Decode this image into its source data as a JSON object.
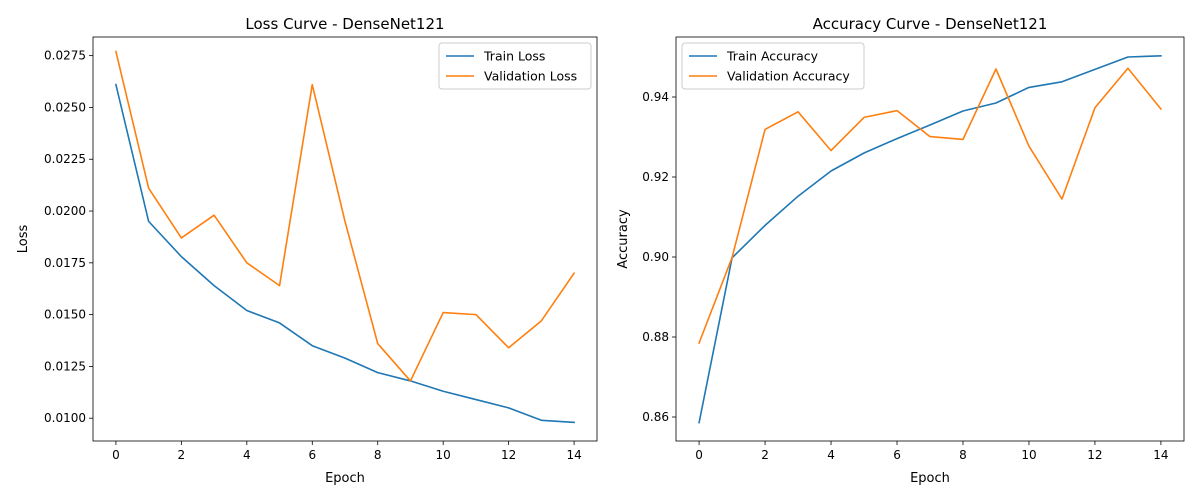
{
  "chart_data": [
    {
      "type": "line",
      "title": "Loss Curve - DenseNet121",
      "xlabel": "Epoch",
      "ylabel": "Loss",
      "x": [
        0,
        1,
        2,
        3,
        4,
        5,
        6,
        7,
        8,
        9,
        10,
        11,
        12,
        13,
        14
      ],
      "xlim": [
        -0.7,
        14.7
      ],
      "ylim": [
        0.0089,
        0.0284
      ],
      "xticks": [
        0,
        2,
        4,
        6,
        8,
        10,
        12,
        14
      ],
      "yticks": [
        0.01,
        0.0125,
        0.015,
        0.0175,
        0.02,
        0.0225,
        0.025,
        0.0275
      ],
      "ytick_decimals": 4,
      "legend": "upper right",
      "grid": false,
      "series": [
        {
          "name": "Train Loss",
          "color": "#1f77b4",
          "values": [
            0.0261,
            0.0195,
            0.0178,
            0.0164,
            0.0152,
            0.0146,
            0.0135,
            0.0129,
            0.0122,
            0.0118,
            0.0113,
            0.0109,
            0.0105,
            0.0099,
            0.0098
          ]
        },
        {
          "name": "Validation Loss",
          "color": "#ff7f0e",
          "values": [
            0.0277,
            0.0211,
            0.0187,
            0.0198,
            0.0175,
            0.0164,
            0.0261,
            0.0195,
            0.0136,
            0.0118,
            0.0151,
            0.015,
            0.0134,
            0.0147,
            0.017
          ]
        }
      ]
    },
    {
      "type": "line",
      "title": "Accuracy Curve - DenseNet121",
      "xlabel": "Epoch",
      "ylabel": "Accuracy",
      "x": [
        0,
        1,
        2,
        3,
        4,
        5,
        6,
        7,
        8,
        9,
        10,
        11,
        12,
        13,
        14
      ],
      "xlim": [
        -0.7,
        14.7
      ],
      "ylim": [
        0.854,
        0.955
      ],
      "xticks": [
        0,
        2,
        4,
        6,
        8,
        10,
        12,
        14
      ],
      "yticks": [
        0.86,
        0.88,
        0.9,
        0.92,
        0.94
      ],
      "ytick_decimals": 2,
      "legend": "upper left",
      "grid": false,
      "series": [
        {
          "name": "Train Accuracy",
          "color": "#1f77b4",
          "values": [
            0.8586,
            0.8998,
            0.9079,
            0.9152,
            0.9215,
            0.926,
            0.9296,
            0.933,
            0.9365,
            0.9385,
            0.9424,
            0.9438,
            0.9469,
            0.95,
            0.9503
          ]
        },
        {
          "name": "Validation Accuracy",
          "color": "#ff7f0e",
          "values": [
            0.8785,
            0.8999,
            0.9319,
            0.9363,
            0.9266,
            0.9349,
            0.9366,
            0.9301,
            0.9294,
            0.947,
            0.9277,
            0.9145,
            0.9373,
            0.9472,
            0.937
          ]
        }
      ]
    }
  ]
}
